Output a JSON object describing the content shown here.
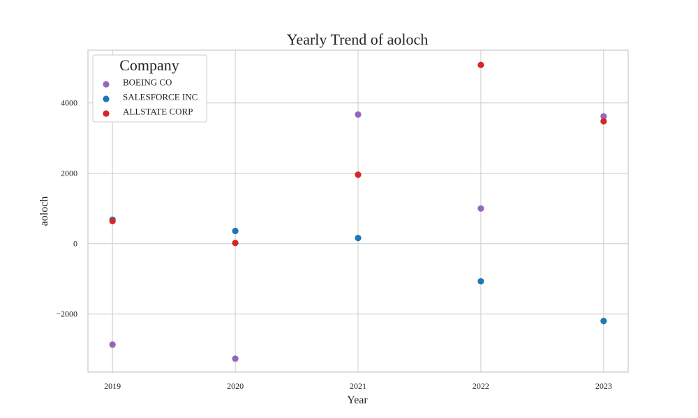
{
  "chart_data": {
    "type": "scatter",
    "title": "Yearly Trend of aoloch",
    "xlabel": "Year",
    "ylabel": "aoloch",
    "x": [
      2019,
      2020,
      2021,
      2022,
      2023
    ],
    "x_tick_labels": [
      "2019",
      "2020",
      "2021",
      "2022",
      "2023"
    ],
    "xlim": [
      2018.8,
      2023.2
    ],
    "y_ticks": [
      -2000,
      0,
      2000,
      4000
    ],
    "y_tick_labels": [
      "−2000",
      "0",
      "2000",
      "4000"
    ],
    "ylim": [
      -3650,
      5500
    ],
    "grid": true,
    "legend": {
      "title": "Company",
      "position": "top-left"
    },
    "series": [
      {
        "name": "BOEING CO",
        "color": "#9467bd",
        "values": [
          -2870,
          -3270,
          3670,
          1000,
          3620
        ]
      },
      {
        "name": "SALESFORCE INC",
        "color": "#1f77b4",
        "values": [
          680,
          360,
          160,
          -1070,
          -2200
        ]
      },
      {
        "name": "ALLSTATE CORP",
        "color": "#d62728",
        "values": [
          640,
          20,
          1960,
          5080,
          3480
        ]
      }
    ]
  }
}
